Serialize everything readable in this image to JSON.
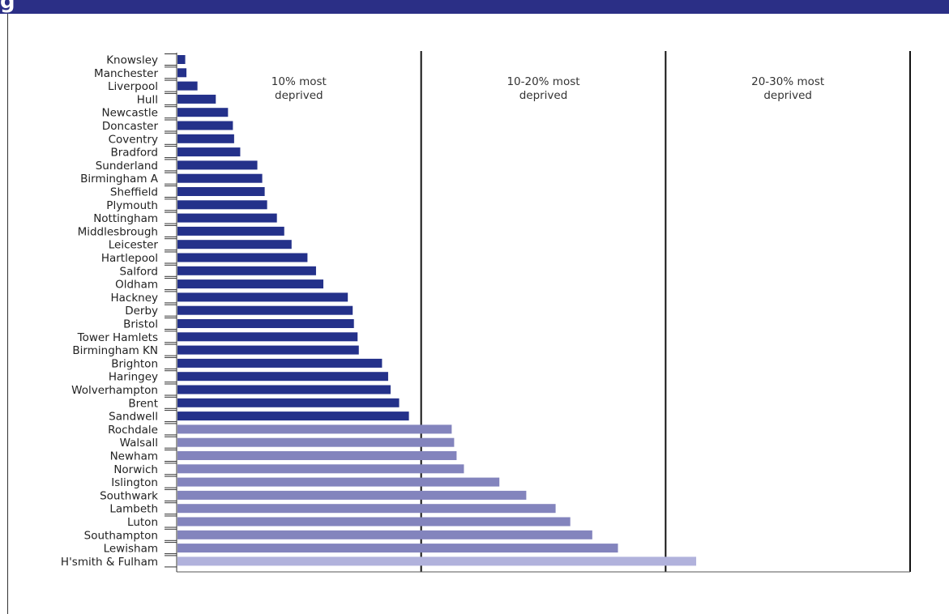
{
  "header": {
    "glyph": "g"
  },
  "chart_data": {
    "type": "bar",
    "orientation": "horizontal",
    "title": "",
    "xlabel": "",
    "ylabel": "",
    "xlim": [
      0,
      30
    ],
    "grid": false,
    "bands": [
      {
        "label_lines": [
          "10% most",
          "deprived"
        ],
        "from": 0,
        "to": 10
      },
      {
        "label_lines": [
          "10-20% most",
          "deprived"
        ],
        "from": 10,
        "to": 20
      },
      {
        "label_lines": [
          "20-30% most",
          "deprived"
        ],
        "from": 20,
        "to": 30
      }
    ],
    "colors": {
      "band1": "#24318a",
      "band2": "#8384bd",
      "band3": "#b1b2dc",
      "divider": "#111111"
    },
    "categories": [
      "Knowsley",
      "Manchester",
      "Liverpool",
      "Hull",
      "Newcastle",
      "Doncaster",
      "Coventry",
      "Bradford",
      "Sunderland",
      "Birmingham A",
      "Sheffield",
      "Plymouth",
      "Nottingham",
      "Middlesbrough",
      "Leicester",
      "Hartlepool",
      "Salford",
      "Oldham",
      "Hackney",
      "Derby",
      "Bristol",
      "Tower Hamlets",
      "Birmingham KN",
      "Brighton",
      "Haringey",
      "Wolverhampton",
      "Brent",
      "Sandwell",
      "Rochdale",
      "Walsall",
      "Newham",
      "Norwich",
      "Islington",
      "Southwark",
      "Lambeth",
      "Luton",
      "Southampton",
      "Lewisham",
      "H'smith & Fulham"
    ],
    "values": [
      0.35,
      0.4,
      0.85,
      1.6,
      2.1,
      2.3,
      2.35,
      2.6,
      3.3,
      3.5,
      3.6,
      3.7,
      4.1,
      4.4,
      4.7,
      5.35,
      5.7,
      6.0,
      7.0,
      7.2,
      7.25,
      7.4,
      7.45,
      8.4,
      8.65,
      8.75,
      9.1,
      9.5,
      11.25,
      11.35,
      11.45,
      11.75,
      13.2,
      14.3,
      15.5,
      16.1,
      17.0,
      18.05,
      21.25
    ]
  }
}
